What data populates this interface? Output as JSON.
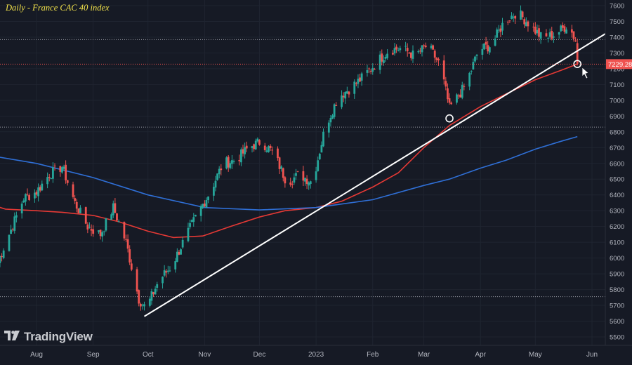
{
  "chart_data": {
    "type": "candlestick",
    "title": "Daily - France CAC 40 index",
    "watermark": "TradingView",
    "ylim": [
      5500,
      7650
    ],
    "y_ticks": [
      5500,
      5600,
      5700,
      5800,
      5900,
      6000,
      6100,
      6200,
      6300,
      6400,
      6500,
      6600,
      6700,
      6800,
      6900,
      7000,
      7100,
      7200,
      7300,
      7400,
      7500,
      7600
    ],
    "x_tick_labels": [
      "Aug",
      "Sep",
      "Oct",
      "Nov",
      "Dec",
      "2023",
      "Feb",
      "Mar",
      "Apr",
      "May",
      "Jun"
    ],
    "last_price": {
      "value": 7229.28,
      "label": "7229.28"
    },
    "horizontal_levels": [
      7385,
      6830,
      5755
    ],
    "trendline": {
      "from": [
        "2022-09-29",
        5630
      ],
      "to": [
        "2023-05-25",
        7320
      ]
    },
    "circle_markers": [
      [
        "2023-03-15",
        6885
      ],
      [
        "2023-05-24",
        7230
      ]
    ],
    "series": [
      {
        "type": "candles",
        "points": [
          [
            "2022-07-11",
            5980
          ],
          [
            "2022-07-18",
            6180
          ],
          [
            "2022-07-25",
            6380
          ],
          [
            "2022-08-01",
            6420
          ],
          [
            "2022-08-08",
            6530
          ],
          [
            "2022-08-15",
            6580
          ],
          [
            "2022-08-22",
            6350
          ],
          [
            "2022-08-29",
            6200
          ],
          [
            "2022-09-05",
            6150
          ],
          [
            "2022-09-12",
            6320
          ],
          [
            "2022-09-19",
            6100
          ],
          [
            "2022-09-26",
            5740
          ],
          [
            "2022-09-30",
            5680
          ],
          [
            "2022-10-07",
            5860
          ],
          [
            "2022-10-14",
            5950
          ],
          [
            "2022-10-21",
            6120
          ],
          [
            "2022-10-28",
            6280
          ],
          [
            "2022-11-04",
            6420
          ],
          [
            "2022-11-11",
            6600
          ],
          [
            "2022-11-18",
            6620
          ],
          [
            "2022-11-25",
            6700
          ],
          [
            "2022-12-02",
            6740
          ],
          [
            "2022-12-09",
            6660
          ],
          [
            "2022-12-16",
            6480
          ],
          [
            "2022-12-23",
            6530
          ],
          [
            "2022-12-30",
            6480
          ],
          [
            "2023-01-06",
            6830
          ],
          [
            "2023-01-13",
            7020
          ],
          [
            "2023-01-20",
            7080
          ],
          [
            "2023-01-27",
            7150
          ],
          [
            "2023-02-03",
            7240
          ],
          [
            "2023-02-10",
            7320
          ],
          [
            "2023-02-17",
            7330
          ],
          [
            "2023-02-24",
            7280
          ],
          [
            "2023-03-03",
            7350
          ],
          [
            "2023-03-10",
            7220
          ],
          [
            "2023-03-15",
            6950
          ],
          [
            "2023-03-20",
            7030
          ],
          [
            "2023-03-24",
            7100
          ],
          [
            "2023-03-31",
            7320
          ],
          [
            "2023-04-07",
            7350
          ],
          [
            "2023-04-14",
            7500
          ],
          [
            "2023-04-21",
            7560
          ],
          [
            "2023-04-28",
            7480
          ],
          [
            "2023-05-05",
            7390
          ],
          [
            "2023-05-12",
            7420
          ],
          [
            "2023-05-19",
            7480
          ],
          [
            "2023-05-23",
            7380
          ],
          [
            "2023-05-24",
            7229.28
          ]
        ]
      },
      {
        "type": "moving_average",
        "color": "#e53935",
        "points": [
          [
            "2022-07-01",
            6360
          ],
          [
            "2022-07-15",
            6310
          ],
          [
            "2022-08-01",
            6300
          ],
          [
            "2022-08-15",
            6290
          ],
          [
            "2022-09-01",
            6270
          ],
          [
            "2022-09-15",
            6230
          ],
          [
            "2022-10-01",
            6170
          ],
          [
            "2022-10-15",
            6130
          ],
          [
            "2022-10-31",
            6140
          ],
          [
            "2022-11-15",
            6200
          ],
          [
            "2022-12-01",
            6260
          ],
          [
            "2022-12-15",
            6300
          ],
          [
            "2023-01-01",
            6320
          ],
          [
            "2023-01-15",
            6360
          ],
          [
            "2023-02-01",
            6450
          ],
          [
            "2023-02-15",
            6540
          ],
          [
            "2023-03-01",
            6700
          ],
          [
            "2023-03-15",
            6840
          ],
          [
            "2023-04-01",
            6960
          ],
          [
            "2023-04-15",
            7040
          ],
          [
            "2023-05-01",
            7130
          ],
          [
            "2023-05-15",
            7190
          ],
          [
            "2023-05-24",
            7230
          ]
        ]
      },
      {
        "type": "moving_average",
        "color": "#2f6fd6",
        "points": [
          [
            "2022-07-01",
            6660
          ],
          [
            "2022-08-01",
            6600
          ],
          [
            "2022-09-01",
            6510
          ],
          [
            "2022-10-01",
            6400
          ],
          [
            "2022-11-01",
            6320
          ],
          [
            "2022-12-01",
            6305
          ],
          [
            "2023-01-01",
            6320
          ],
          [
            "2023-02-01",
            6370
          ],
          [
            "2023-03-01",
            6460
          ],
          [
            "2023-03-15",
            6500
          ],
          [
            "2023-04-01",
            6570
          ],
          [
            "2023-04-15",
            6620
          ],
          [
            "2023-05-01",
            6690
          ],
          [
            "2023-05-15",
            6740
          ],
          [
            "2023-05-24",
            6770
          ]
        ]
      }
    ]
  }
}
